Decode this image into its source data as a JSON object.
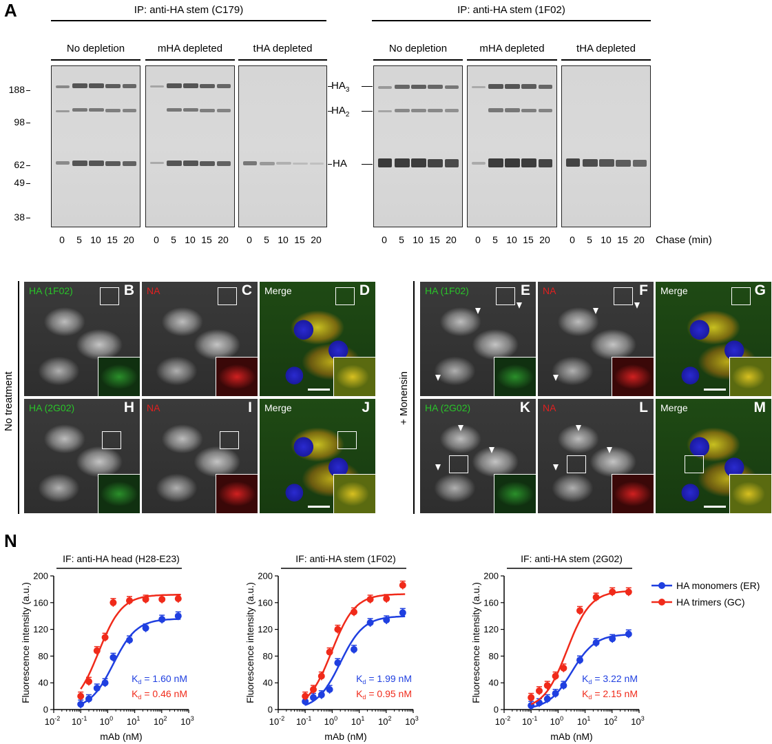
{
  "panelA": {
    "letter": "A",
    "ip_left": "IP: anti-HA stem (C179)",
    "ip_right": "IP: anti-HA stem (1F02)",
    "groups": [
      "No depletion",
      "mHA depleted",
      "tHA depleted"
    ],
    "mw_markers": [
      "188",
      "98",
      "62",
      "49",
      "38"
    ],
    "lanes": [
      "0",
      "5",
      "10",
      "15",
      "20"
    ],
    "chase_label": "Chase (min)",
    "band_labels": {
      "ha3": "HA",
      "ha3_sub": "3",
      "ha2": "HA",
      "ha2_sub": "2",
      "ha": "HA"
    }
  },
  "microscopy": {
    "left_side_label": "No treatment",
    "right_side_label": "+ Monensin",
    "panels": [
      {
        "letter": "B",
        "label": "HA (1F02)",
        "label_color": "#29c429"
      },
      {
        "letter": "C",
        "label": "NA",
        "label_color": "#e02020"
      },
      {
        "letter": "D",
        "label": "Merge",
        "label_color": "#ffffff"
      },
      {
        "letter": "E",
        "label": "HA (1F02)",
        "label_color": "#29c429"
      },
      {
        "letter": "F",
        "label": "NA",
        "label_color": "#e02020"
      },
      {
        "letter": "G",
        "label": "Merge",
        "label_color": "#ffffff"
      },
      {
        "letter": "H",
        "label": "HA (2G02)",
        "label_color": "#29c429"
      },
      {
        "letter": "I",
        "label": "NA",
        "label_color": "#e02020"
      },
      {
        "letter": "J",
        "label": "Merge",
        "label_color": "#ffffff"
      },
      {
        "letter": "K",
        "label": "HA (2G02)",
        "label_color": "#29c429"
      },
      {
        "letter": "L",
        "label": "NA",
        "label_color": "#e02020"
      },
      {
        "letter": "M",
        "label": "Merge",
        "label_color": "#ffffff"
      }
    ]
  },
  "panelN": {
    "letter": "N",
    "legend": [
      "HA monomers (ER)",
      "HA trimers (GC)"
    ],
    "colors": {
      "monomer": "#1f3fe0",
      "trimer": "#f02a1a"
    },
    "ylabel": "Fluorescence intensity (a.u.)",
    "xlabel": "mAb (nM)",
    "yticks": [
      "0",
      "40",
      "80",
      "120",
      "160",
      "200"
    ],
    "xtick_bases": [
      "10",
      "10",
      "10",
      "10",
      "10",
      "10"
    ],
    "xtick_exps": [
      "-2",
      "-1",
      "0",
      "1",
      "2",
      "3"
    ],
    "charts": [
      {
        "title": "IF: anti-HA head (H28-E23)",
        "kd_mono": "1.60 nM",
        "kd_tri": "0.46 nM"
      },
      {
        "title": "IF: anti-HA stem (1F02)",
        "kd_mono": "1.99 nM",
        "kd_tri": "0.95 nM"
      },
      {
        "title": "IF: anti-HA stem (2G02)",
        "kd_mono": "3.22 nM",
        "kd_tri": "2.15 nM"
      }
    ],
    "kd_prefix": "K",
    "kd_sub": "d",
    "kd_eq": " = "
  },
  "chart_data": [
    {
      "type": "scatter",
      "title": "IF: anti-HA head (H28-E23)",
      "xlabel": "mAb (nM)",
      "ylabel": "Fluorescence intensity (a.u.)",
      "xscale": "log",
      "xlim": [
        0.01,
        1000
      ],
      "ylim": [
        0,
        200
      ],
      "x": [
        0.1,
        0.2,
        0.4,
        0.8,
        1.6,
        6.4,
        25.6,
        102.4,
        409.6
      ],
      "series": [
        {
          "name": "HA monomers (ER)",
          "values": [
            8,
            16,
            32,
            40,
            78,
            104,
            122,
            135,
            140
          ],
          "kd": 1.6,
          "bmax": 136
        },
        {
          "name": "HA trimers (GC)",
          "values": [
            20,
            42,
            88,
            108,
            160,
            163,
            165,
            165,
            166
          ],
          "kd": 0.46,
          "bmax": 172
        }
      ]
    },
    {
      "type": "scatter",
      "title": "IF: anti-HA stem (1F02)",
      "xlabel": "mAb (nM)",
      "ylabel": "Fluorescence intensity (a.u.)",
      "xscale": "log",
      "xlim": [
        0.01,
        1000
      ],
      "ylim": [
        0,
        200
      ],
      "x": [
        0.1,
        0.2,
        0.4,
        0.8,
        1.6,
        6.4,
        25.6,
        102.4,
        409.6
      ],
      "series": [
        {
          "name": "HA monomers (ER)",
          "values": [
            12,
            18,
            22,
            30,
            70,
            90,
            130,
            134,
            145
          ],
          "kd": 1.99,
          "bmax": 140
        },
        {
          "name": "HA trimers (GC)",
          "values": [
            20,
            30,
            50,
            86,
            120,
            146,
            165,
            166,
            186
          ],
          "kd": 0.95,
          "bmax": 173
        }
      ]
    },
    {
      "type": "scatter",
      "title": "IF: anti-HA stem (2G02)",
      "xlabel": "mAb (nM)",
      "ylabel": "Fluorescence intensity (a.u.)",
      "xscale": "log",
      "xlim": [
        0.01,
        1000
      ],
      "ylim": [
        0,
        200
      ],
      "x": [
        0.1,
        0.2,
        0.4,
        0.8,
        1.6,
        6.4,
        25.6,
        102.4,
        409.6
      ],
      "series": [
        {
          "name": "HA monomers (ER)",
          "values": [
            6,
            10,
            16,
            24,
            36,
            74,
            100,
            106,
            113
          ],
          "kd": 3.22,
          "bmax": 113
        },
        {
          "name": "HA trimers (GC)",
          "values": [
            18,
            28,
            36,
            50,
            62,
            148,
            168,
            176,
            176
          ],
          "kd": 2.15,
          "bmax": 178
        }
      ]
    }
  ]
}
